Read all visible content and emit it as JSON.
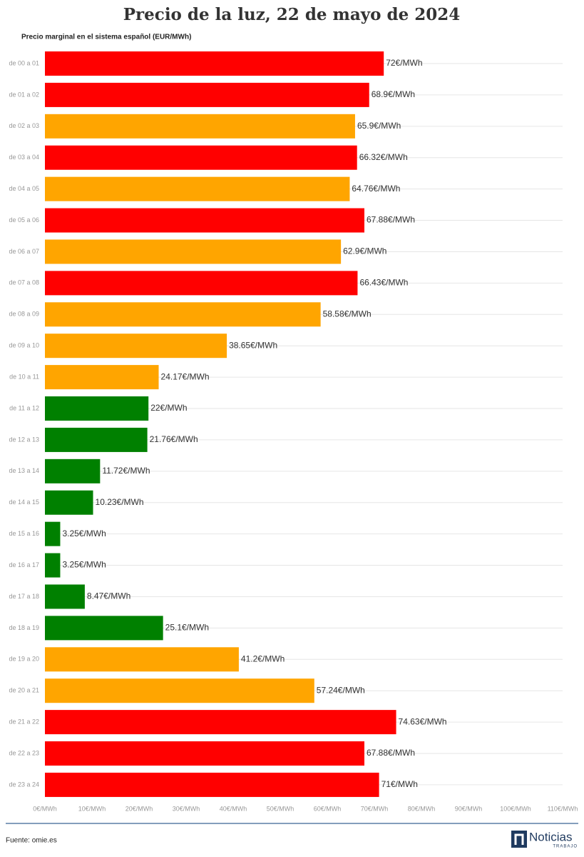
{
  "chart_data": {
    "type": "bar",
    "orientation": "horizontal",
    "title": "Precio de la luz, 22 de mayo de 2024",
    "subtitle": "Precio marginal en el sistema español (EUR/MWh)",
    "source": "Fuente: omie.es",
    "logo": "Noticias",
    "logo_tagline": "TRABAJO",
    "categories": [
      "de 00 a 01",
      "de 01 a 02",
      "de 02 a 03",
      "de 03 a 04",
      "de 04 a 05",
      "de 05 a 06",
      "de 06 a 07",
      "de 07 a 08",
      "de 08 a 09",
      "de 09 a 10",
      "de 10 a 11",
      "de 11 a 12",
      "de 12 a 13",
      "de 13 a 14",
      "de 14 a 15",
      "de 15 a 16",
      "de 16 a 17",
      "de 17 a 18",
      "de 18 a 19",
      "de 19 a 20",
      "de 20 a 21",
      "de 21 a 22",
      "de 22 a 23",
      "de 23 a 24"
    ],
    "values": [
      72,
      68.9,
      65.9,
      66.32,
      64.76,
      67.88,
      62.9,
      66.43,
      58.58,
      38.65,
      24.17,
      22,
      21.76,
      11.72,
      10.23,
      3.25,
      3.25,
      8.47,
      25.1,
      41.2,
      57.24,
      74.63,
      67.88,
      71
    ],
    "value_labels": [
      "72€/MWh",
      "68.9€/MWh",
      "65.9€/MWh",
      "66.32€/MWh",
      "64.76€/MWh",
      "67.88€/MWh",
      "62.9€/MWh",
      "66.43€/MWh",
      "58.58€/MWh",
      "38.65€/MWh",
      "24.17€/MWh",
      "22€/MWh",
      "21.76€/MWh",
      "11.72€/MWh",
      "10.23€/MWh",
      "3.25€/MWh",
      "3.25€/MWh",
      "8.47€/MWh",
      "25.1€/MWh",
      "41.2€/MWh",
      "57.24€/MWh",
      "74.63€/MWh",
      "67.88€/MWh",
      "71€/MWh"
    ],
    "colors": [
      "#ff0000",
      "#ff0000",
      "#ffa500",
      "#ff0000",
      "#ffa500",
      "#ff0000",
      "#ffa500",
      "#ff0000",
      "#ffa500",
      "#ffa500",
      "#ffa500",
      "#008000",
      "#008000",
      "#008000",
      "#008000",
      "#008000",
      "#008000",
      "#008000",
      "#008000",
      "#ffa500",
      "#ffa500",
      "#ff0000",
      "#ff0000",
      "#ff0000"
    ],
    "xlim": [
      0,
      110
    ],
    "xticks": [
      {
        "value": 0,
        "label": "0€/MWh"
      },
      {
        "value": 10,
        "label": "10€/MWh"
      },
      {
        "value": 20,
        "label": "20€/MWh"
      },
      {
        "value": 30,
        "label": "30€/MWh"
      },
      {
        "value": 40,
        "label": "40€/MWh"
      },
      {
        "value": 50,
        "label": "50€/MWh"
      },
      {
        "value": 60,
        "label": "60€/MWh"
      },
      {
        "value": 70,
        "label": "70€/MWh"
      },
      {
        "value": 80,
        "label": "80€/MWh"
      },
      {
        "value": 90,
        "label": "90€/MWh"
      },
      {
        "value": 100,
        "label": "100€/MWh"
      },
      {
        "value": 110,
        "label": "110€/MWh"
      }
    ],
    "grid": false
  }
}
